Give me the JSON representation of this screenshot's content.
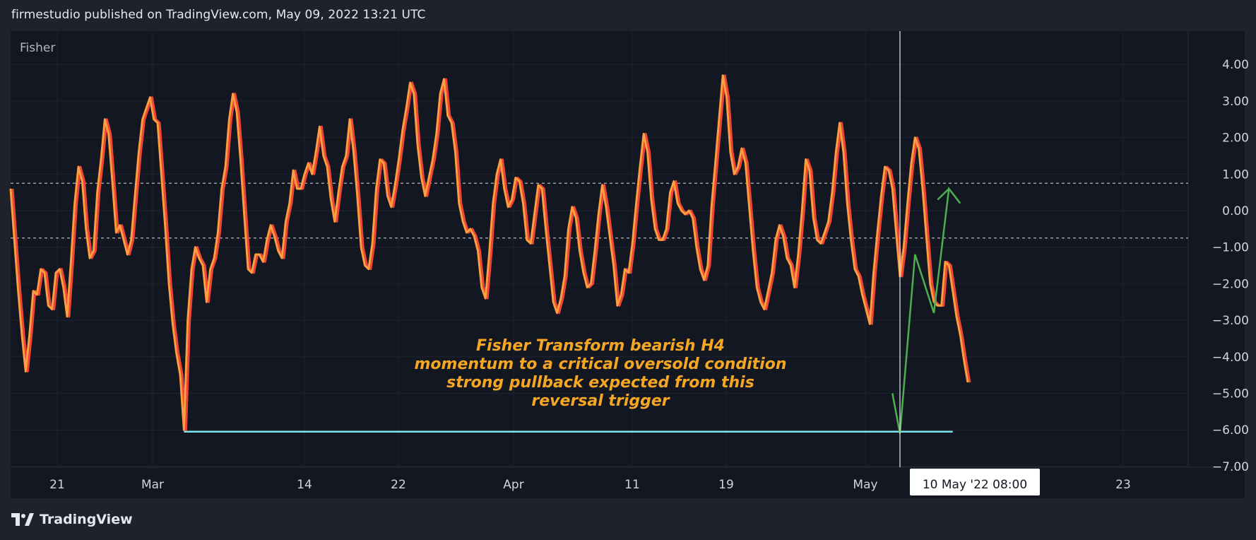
{
  "header": {
    "publish_line": "firmestudio published on TradingView.com, May 09, 2022 13:21 UTC"
  },
  "footer": {
    "brand": "TradingView",
    "logo_icon": "tradingview-logo-icon"
  },
  "colors": {
    "background": "#131722",
    "page": "#1e222d",
    "fisher_line": "#ff9e3d",
    "trigger_line": "#f0433a",
    "support_line": "#7fe3f0",
    "projection": "#4caf50",
    "annotation": "#f5a623",
    "level_lines": "#d1d4dc"
  },
  "chart_data": {
    "type": "line",
    "title": "Fisher",
    "xlabel": "",
    "ylabel": "",
    "ylim": [
      -7.0,
      4.5
    ],
    "grid": true,
    "x_tick_labels": [
      "21",
      "Mar",
      "14",
      "22",
      "Apr",
      "11",
      "19",
      "May",
      "23"
    ],
    "y_tick_labels": [
      "4.00",
      "3.00",
      "2.00",
      "1.00",
      "0.00",
      "−1.00",
      "−2.00",
      "−3.00",
      "−4.00",
      "−5.00",
      "−6.00",
      "−7.00"
    ],
    "y_ticks": [
      4,
      3,
      2,
      1,
      0,
      -1,
      -2,
      -3,
      -4,
      -5,
      -6,
      -7
    ],
    "levels": [
      0.75,
      -0.75
    ],
    "x_range": [
      0,
      300
    ],
    "series": [
      {
        "values": [
          0.6,
          -0.8,
          -2.2,
          -3.4,
          -4.4,
          -3.4,
          -2.2,
          -2.3,
          -1.6,
          -1.7,
          -2.6,
          -2.7,
          -1.7,
          -1.6,
          -2.1,
          -2.9,
          -1.4,
          0.2,
          1.2,
          0.8,
          -0.5,
          -1.3,
          -1.1,
          0.5,
          1.4,
          2.5,
          2.1,
          0.8,
          -0.6,
          -0.4,
          -0.8,
          -1.2,
          -0.8,
          0.4,
          1.6,
          2.5,
          2.8,
          3.1,
          2.5,
          2.4,
          1.0,
          -0.4,
          -2.0,
          -3.1,
          -3.9,
          -4.5,
          -6.0,
          -3.0,
          -1.6,
          -1.0,
          -1.3,
          -1.5,
          -2.5,
          -1.6,
          -1.3,
          -0.6,
          0.6,
          1.2,
          2.5,
          3.2,
          2.7,
          1.4,
          -0.1,
          -1.6,
          -1.7,
          -1.2,
          -1.2,
          -1.4,
          -0.8,
          -0.4,
          -0.7,
          -1.1,
          -1.3,
          -0.3,
          0.2,
          1.1,
          0.6,
          0.6,
          1.0,
          1.3,
          1.0,
          1.6,
          2.3,
          1.5,
          1.2,
          0.3,
          -0.3,
          0.5,
          1.2,
          1.5,
          2.5,
          1.6,
          0.4,
          -1.0,
          -1.5,
          -1.6,
          -0.9,
          0.6,
          1.4,
          1.3,
          0.4,
          0.1,
          0.7,
          1.4,
          2.2,
          2.8,
          3.5,
          3.2,
          1.8,
          0.9,
          0.4,
          0.9,
          1.4,
          2.1,
          3.2,
          3.6,
          2.6,
          2.4,
          1.6,
          0.2,
          -0.3,
          -0.6,
          -0.5,
          -0.7,
          -1.1,
          -2.1,
          -2.4,
          -1.2,
          0.2,
          1.0,
          1.4,
          0.6,
          0.1,
          0.3,
          0.9,
          0.8,
          0.2,
          -0.8,
          -0.9,
          -0.1,
          0.7,
          0.6,
          -0.5,
          -1.5,
          -2.5,
          -2.8,
          -2.4,
          -1.8,
          -0.5,
          0.1,
          -0.2,
          -1.1,
          -1.7,
          -2.1,
          -2.0,
          -1.1,
          -0.1,
          0.7,
          0.1,
          -0.7,
          -1.5,
          -2.6,
          -2.3,
          -1.6,
          -1.7,
          -0.9,
          0.2,
          1.2,
          2.1,
          1.6,
          0.3,
          -0.5,
          -0.8,
          -0.8,
          -0.5,
          0.5,
          0.8,
          0.2,
          0.0,
          -0.1,
          0.0,
          -0.2,
          -1.0,
          -1.6,
          -1.9,
          -1.5,
          0.1,
          1.3,
          2.5,
          3.7,
          3.1,
          1.6,
          1.0,
          1.2,
          1.7,
          1.3,
          0.1,
          -1.1,
          -2.1,
          -2.5,
          -2.7,
          -2.2,
          -1.7,
          -0.8,
          -0.4,
          -0.7,
          -1.3,
          -1.5,
          -2.1,
          -1.2,
          0.0,
          1.4,
          1.1,
          -0.2,
          -0.8,
          -0.9,
          -0.6,
          -0.3,
          0.5,
          1.6,
          2.4,
          1.6,
          0.2,
          -0.8,
          -1.6,
          -1.8,
          -2.3,
          -2.7,
          -3.1,
          -1.7,
          -0.6,
          0.4,
          1.2,
          1.1,
          0.6,
          -0.6,
          -1.8,
          -1.0,
          0.2,
          1.3,
          2.0,
          1.7,
          0.6,
          -0.7,
          -2.0,
          -2.5,
          -2.6,
          -2.6,
          -1.4,
          -1.5,
          -2.2,
          -2.9,
          -3.4,
          -4.1,
          -4.7
        ]
      }
    ],
    "support": {
      "y": -6.05,
      "x_start": 46,
      "x_end": 250
    },
    "projection": [
      [
        234,
        -5.0
      ],
      [
        236,
        -6.1
      ],
      [
        240,
        -1.2
      ],
      [
        245,
        -2.8
      ],
      [
        249,
        0.6
      ],
      [
        252,
        0.2
      ],
      [
        249,
        0.6
      ],
      [
        246,
        0.3
      ]
    ],
    "cursor": {
      "x": 236,
      "label": "10 May '22   08:00"
    },
    "annotation": {
      "lines": [
        "Fisher Transform bearish H4",
        "momentum to a critical oversold condition",
        "strong pullback expected from this",
        "reversal trigger"
      ]
    }
  }
}
